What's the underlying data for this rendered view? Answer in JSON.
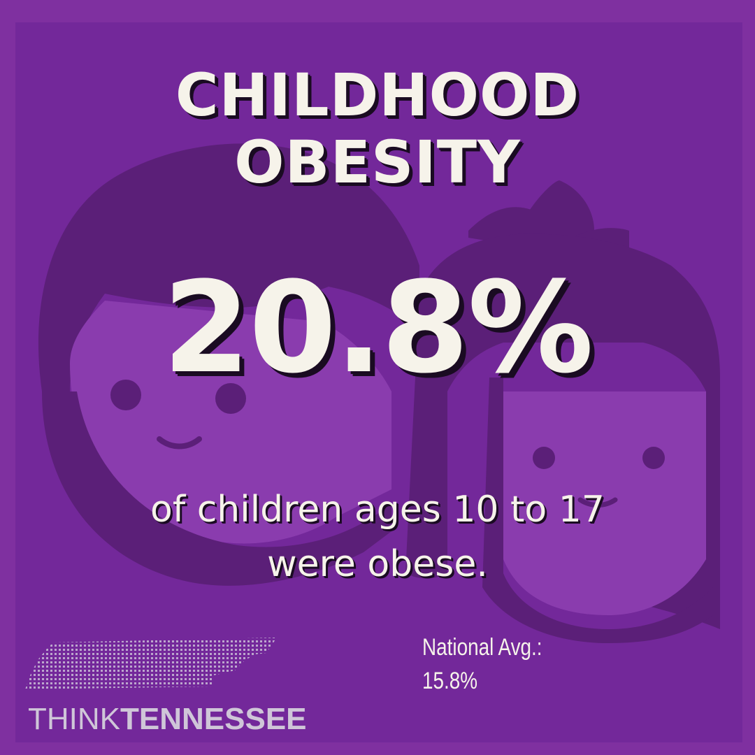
{
  "title": {
    "line1": "CHILDHOOD",
    "line2": "OBESITY"
  },
  "statistic": "20.8%",
  "description": {
    "line1": "of children ages 10 to 17",
    "line2": "were obese."
  },
  "national_average": {
    "label": "National Avg.:",
    "value": "15.8%"
  },
  "logo": {
    "word1": "THINK",
    "word2": "TENNESSEE"
  },
  "colors": {
    "background": "#7f30a0",
    "silhouette": "#5b1f78",
    "text": "#f6f3ea",
    "shadow": "#1a0b22"
  },
  "icons": [
    "boy-face-icon",
    "girl-face-icon",
    "tennessee-map-icon"
  ]
}
